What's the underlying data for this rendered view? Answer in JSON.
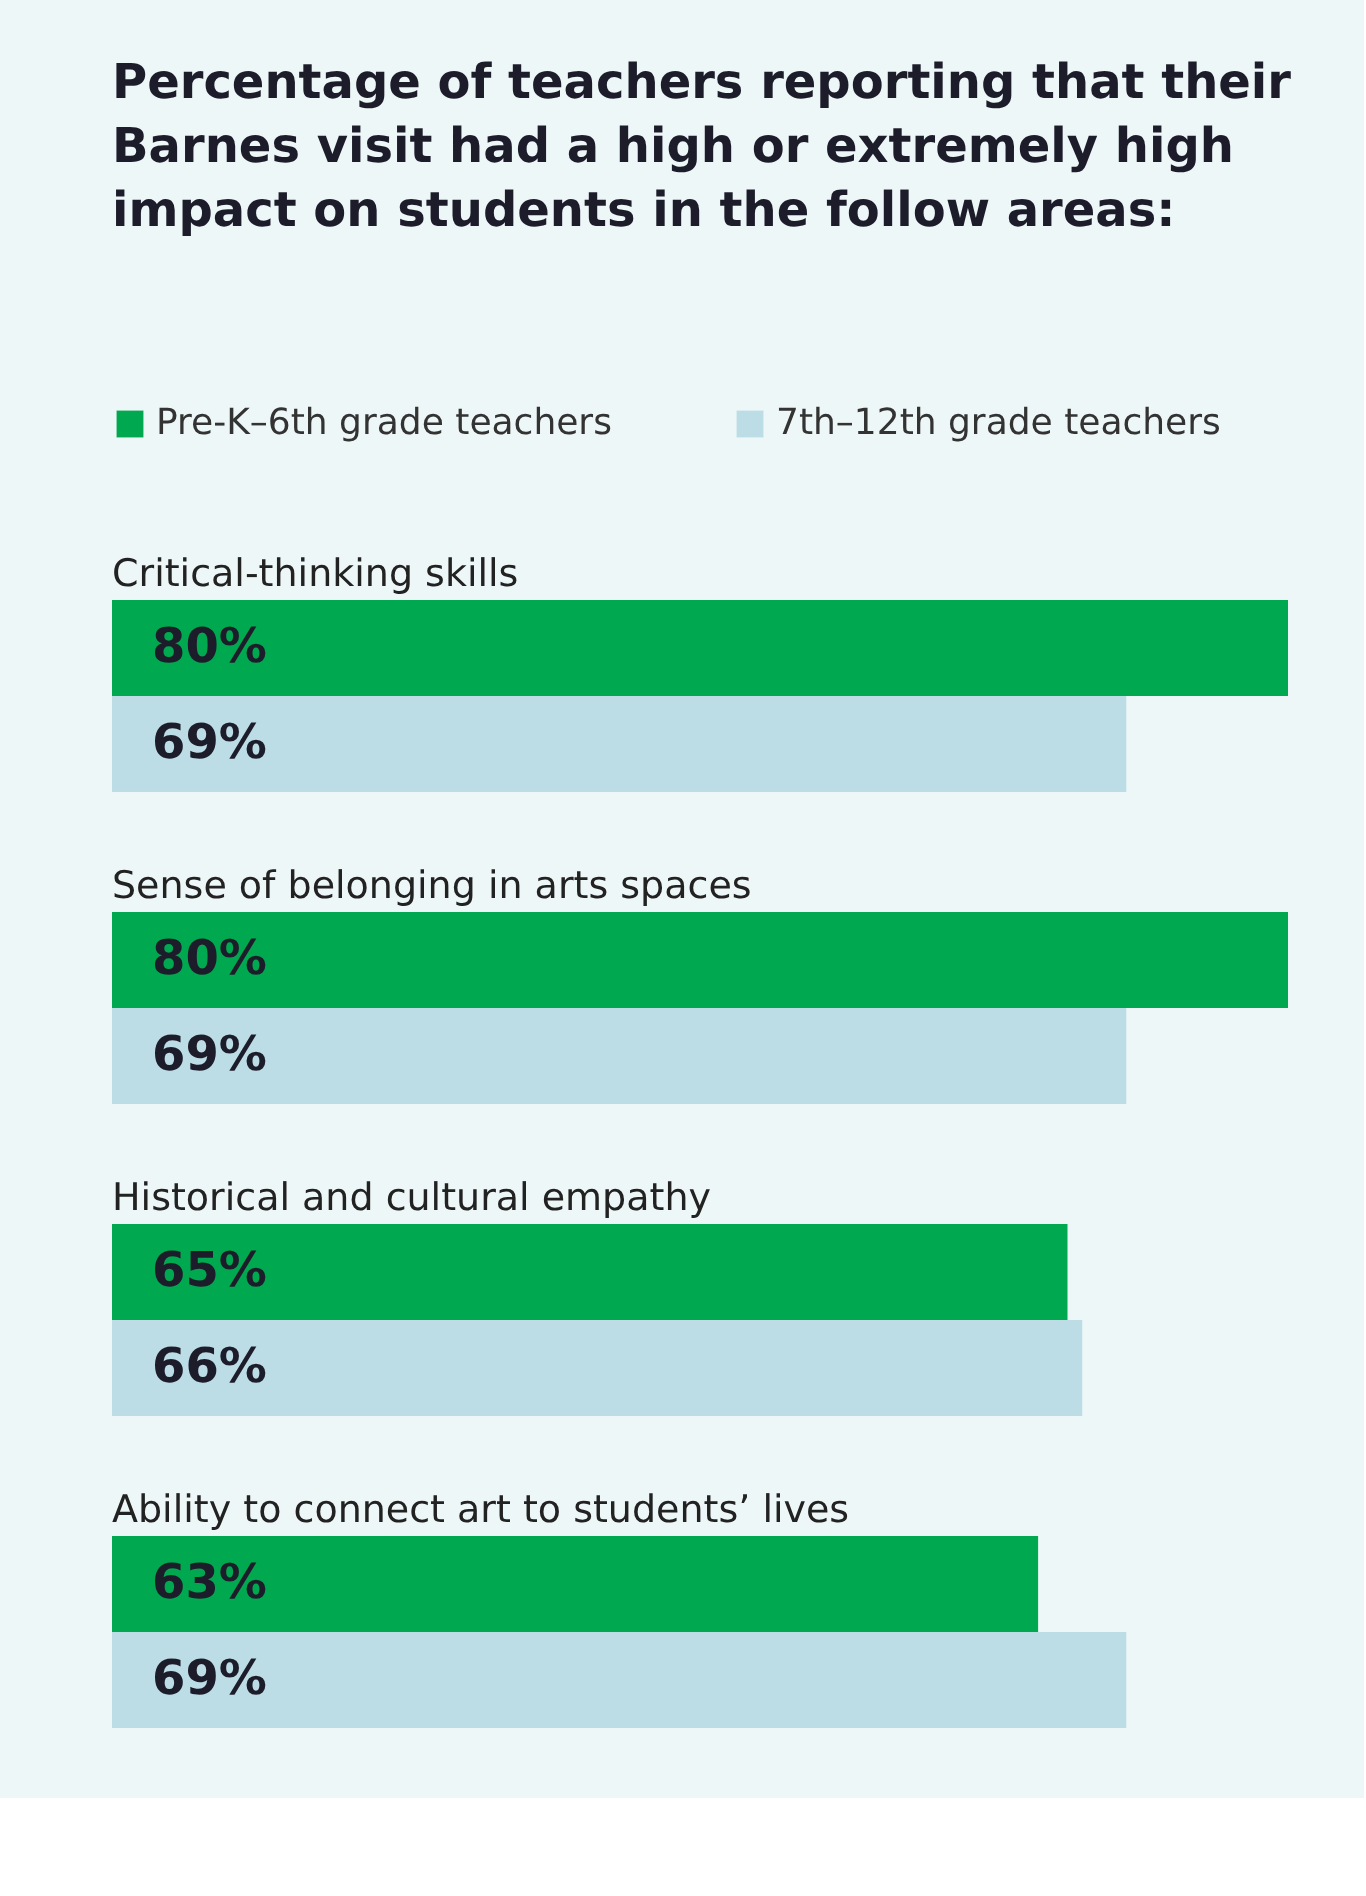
{
  "chart_data": {
    "type": "bar",
    "orientation": "horizontal",
    "title": "Percentage of teachers reporting that their Barnes visit had a high or extremely high impact on students in the follow areas:",
    "categories": [
      "Critical-thinking skills",
      "Sense of belonging in arts spaces",
      "Historical and cultural empathy",
      "Ability to connect art to students’ lives"
    ],
    "series": [
      {
        "name": "Pre-K–6th grade teachers",
        "color": "#00a84f",
        "values": [
          80,
          80,
          65,
          63
        ],
        "value_labels": [
          "80%",
          "80%",
          "65%",
          "63%"
        ]
      },
      {
        "name": "7th–12th grade teachers",
        "color": "#bcdde6",
        "values": [
          69,
          69,
          66,
          69
        ],
        "value_labels": [
          "69%",
          "69%",
          "66%",
          "69%"
        ]
      }
    ],
    "legend": "top left"
  }
}
